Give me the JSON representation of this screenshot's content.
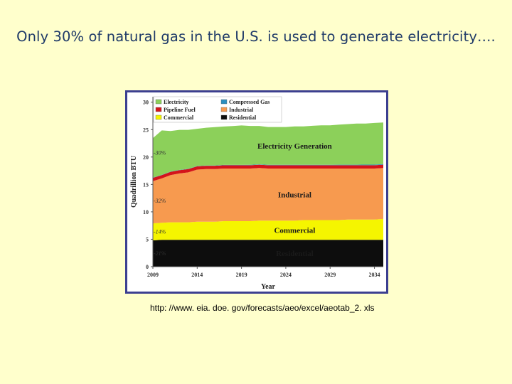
{
  "slide": {
    "title": "Only 30% of natural gas in the U.S. is used to generate electricity….",
    "source": "http: //www. eia. doe. gov/forecasts/aeo/excel/aeotab_2. xls"
  },
  "chart_data": {
    "type": "area",
    "x": [
      2009,
      2010,
      2011,
      2012,
      2013,
      2014,
      2015,
      2016,
      2017,
      2018,
      2019,
      2020,
      2021,
      2022,
      2023,
      2024,
      2025,
      2026,
      2027,
      2028,
      2029,
      2030,
      2031,
      2032,
      2033,
      2034,
      2035
    ],
    "xticks": [
      "2009",
      "2014",
      "2019",
      "2024",
      "2029",
      "2034"
    ],
    "xtick_values": [
      2009,
      2014,
      2019,
      2024,
      2029,
      2034
    ],
    "yticks": [
      "0",
      "5",
      "10",
      "15",
      "20",
      "25",
      "30"
    ],
    "ylim": [
      0,
      31
    ],
    "xlim": [
      2009,
      2035
    ],
    "xlabel": "Year",
    "ylabel": "Quadrillion BTU",
    "legend_position": "top-left",
    "stack_order": [
      "Residential",
      "Commercial",
      "Industrial",
      "Pipeline Fuel",
      "Compressed Gas",
      "Electricity"
    ],
    "series": [
      {
        "name": "Residential",
        "color": "#0d0d0d",
        "label_color": "#ffffff",
        "area_label": "Residential",
        "share_label": "21%",
        "values": [
          4.8,
          4.9,
          4.9,
          4.9,
          4.9,
          4.9,
          4.9,
          4.9,
          4.9,
          4.9,
          4.9,
          4.9,
          4.9,
          4.9,
          4.9,
          4.9,
          4.9,
          4.9,
          4.9,
          4.9,
          4.9,
          4.9,
          4.9,
          4.9,
          4.9,
          4.9,
          4.9
        ]
      },
      {
        "name": "Commercial",
        "color": "#f5f500",
        "label_color": "#1a1a1a",
        "area_label": "Commercial",
        "share_label": "14%",
        "values": [
          3.1,
          3.1,
          3.2,
          3.2,
          3.2,
          3.3,
          3.3,
          3.3,
          3.4,
          3.4,
          3.4,
          3.4,
          3.5,
          3.5,
          3.5,
          3.5,
          3.5,
          3.6,
          3.6,
          3.6,
          3.6,
          3.6,
          3.7,
          3.7,
          3.7,
          3.7,
          3.8
        ]
      },
      {
        "name": "Industrial",
        "color": "#f79a4f",
        "label_color": "#1a1a1a",
        "area_label": "Industrial",
        "share_label": "32%",
        "values": [
          7.7,
          8.1,
          8.6,
          8.9,
          9.1,
          9.5,
          9.6,
          9.6,
          9.6,
          9.6,
          9.6,
          9.6,
          9.6,
          9.5,
          9.5,
          9.5,
          9.5,
          9.4,
          9.4,
          9.4,
          9.4,
          9.4,
          9.3,
          9.3,
          9.3,
          9.3,
          9.3
        ]
      },
      {
        "name": "Pipeline Fuel",
        "color": "#d4141a",
        "values": [
          0.6,
          0.6,
          0.6,
          0.6,
          0.6,
          0.6,
          0.6,
          0.6,
          0.6,
          0.6,
          0.6,
          0.6,
          0.6,
          0.6,
          0.6,
          0.6,
          0.6,
          0.6,
          0.6,
          0.6,
          0.6,
          0.6,
          0.6,
          0.6,
          0.6,
          0.6,
          0.6
        ]
      },
      {
        "name": "Compressed Gas",
        "color": "#2a8fc1",
        "values": [
          0.05,
          0.05,
          0.05,
          0.05,
          0.05,
          0.05,
          0.05,
          0.06,
          0.06,
          0.06,
          0.06,
          0.07,
          0.07,
          0.07,
          0.07,
          0.08,
          0.08,
          0.08,
          0.09,
          0.09,
          0.09,
          0.1,
          0.1,
          0.1,
          0.11,
          0.11,
          0.11
        ]
      },
      {
        "name": "Electricity",
        "color": "#8cd05a",
        "label_color": "#1a1a1a",
        "area_label": "Electricity Generation",
        "share_label": "30%",
        "values": [
          7.2,
          8.1,
          7.4,
          7.3,
          7.1,
          6.8,
          6.9,
          7.0,
          7.0,
          7.1,
          7.2,
          7.1,
          7.0,
          6.9,
          6.9,
          6.9,
          7.0,
          7.0,
          7.1,
          7.2,
          7.2,
          7.3,
          7.4,
          7.5,
          7.5,
          7.6,
          7.6
        ]
      }
    ]
  }
}
